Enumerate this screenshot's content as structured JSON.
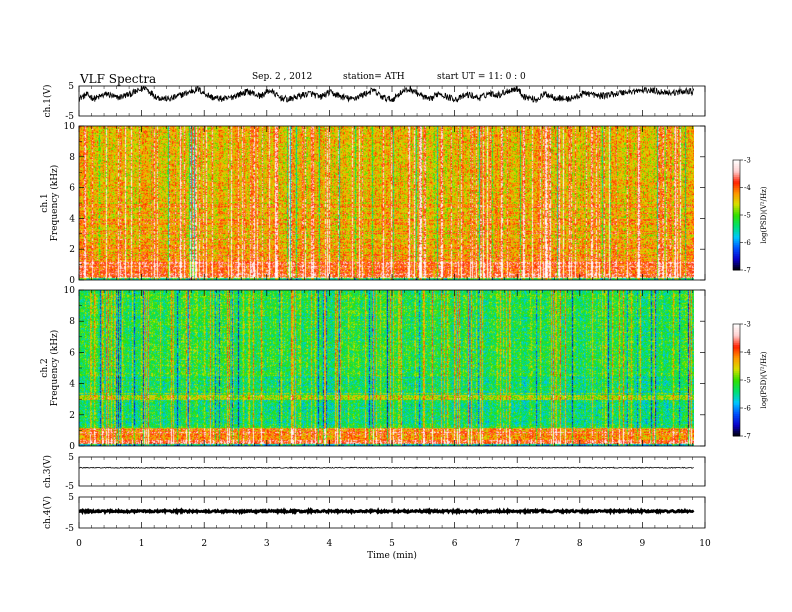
{
  "header": {
    "title": "VLF  Spectra",
    "date": "Sep. 2  , 2012",
    "station": "station= ATH",
    "start": "start  UT  =    11: 0  : 0"
  },
  "chart_data": [
    {
      "id": "ch1-waveform",
      "type": "line",
      "ylabel": "ch.1(V)",
      "ylim": [
        -5,
        5
      ],
      "yticks": [
        "5",
        "-5"
      ],
      "xlim": [
        0,
        10
      ],
      "trend": [
        [
          0.0,
          0.9
        ],
        [
          0.12,
          2.1
        ],
        [
          0.25,
          0.8
        ],
        [
          0.45,
          2.4
        ],
        [
          0.6,
          1.0
        ],
        [
          0.8,
          2.2
        ],
        [
          0.95,
          3.4
        ],
        [
          1.05,
          4.6
        ],
        [
          1.15,
          2.8
        ],
        [
          1.25,
          1.2
        ],
        [
          1.45,
          0.6
        ],
        [
          1.6,
          1.8
        ],
        [
          1.75,
          2.9
        ],
        [
          1.9,
          4.0
        ],
        [
          2.0,
          2.6
        ],
        [
          2.15,
          1.0
        ],
        [
          2.35,
          0.6
        ],
        [
          2.5,
          1.8
        ],
        [
          2.7,
          3.2
        ],
        [
          2.9,
          1.6
        ],
        [
          3.05,
          3.6
        ],
        [
          3.2,
          1.2
        ],
        [
          3.35,
          0.4
        ],
        [
          3.5,
          1.6
        ],
        [
          3.7,
          2.6
        ],
        [
          3.85,
          1.2
        ],
        [
          4.0,
          2.9
        ],
        [
          4.2,
          1.4
        ],
        [
          4.35,
          0.6
        ],
        [
          4.55,
          2.2
        ],
        [
          4.7,
          3.6
        ],
        [
          4.85,
          1.2
        ],
        [
          5.0,
          0.4
        ],
        [
          5.15,
          3.0
        ],
        [
          5.3,
          4.0
        ],
        [
          5.45,
          2.0
        ],
        [
          5.6,
          0.3
        ],
        [
          5.75,
          2.8
        ],
        [
          5.9,
          1.2
        ],
        [
          6.05,
          0.6
        ],
        [
          6.2,
          2.2
        ],
        [
          6.4,
          1.0
        ],
        [
          6.55,
          2.6
        ],
        [
          6.7,
          2.0
        ],
        [
          6.85,
          3.4
        ],
        [
          7.0,
          4.2
        ],
        [
          7.1,
          1.6
        ],
        [
          7.3,
          0.4
        ],
        [
          7.45,
          2.4
        ],
        [
          7.6,
          1.2
        ],
        [
          7.8,
          0.6
        ],
        [
          7.95,
          1.4
        ],
        [
          8.1,
          2.8
        ],
        [
          8.3,
          1.6
        ],
        [
          8.5,
          2.2
        ],
        [
          8.7,
          2.9
        ],
        [
          8.9,
          3.3
        ],
        [
          9.1,
          3.6
        ],
        [
          9.3,
          3.1
        ],
        [
          9.5,
          2.7
        ],
        [
          9.7,
          3.4
        ],
        [
          9.82,
          3.0
        ]
      ],
      "color": "#000000"
    },
    {
      "id": "ch1-spectrogram",
      "type": "heatmap",
      "ylabel": "ch.1\nFrequency  (kHz)",
      "ylim": [
        0,
        10
      ],
      "yticks": [
        "0",
        "2",
        "4",
        "6",
        "8",
        "10"
      ],
      "xlim": [
        0,
        10
      ],
      "data_extent_x": [
        0,
        9.82
      ],
      "colorbar": {
        "label": "log(PSD)(V²/Hz)",
        "range": [
          -7,
          -3
        ],
        "ticks": [
          "-7",
          "-6",
          "-5",
          "-4",
          "-3"
        ],
        "colors": [
          "#000000",
          "#0a00c8",
          "#0050ff",
          "#00c8ff",
          "#00e070",
          "#30e000",
          "#d8e000",
          "#ff9800",
          "#ff2000",
          "#ffd0d0",
          "#ffffff"
        ]
      },
      "band_kHz_dominant": [
        1.0,
        5.2
      ],
      "base_level": -4.4,
      "low_band_level": -3.9
    },
    {
      "id": "ch2-spectrogram",
      "type": "heatmap",
      "ylabel": "ch.2\nFrequency  (kHz)",
      "ylim": [
        0,
        10
      ],
      "yticks": [
        "0",
        "2",
        "4",
        "6",
        "8",
        "10"
      ],
      "xlim": [
        0,
        10
      ],
      "data_extent_x": [
        0,
        9.82
      ],
      "colorbar": {
        "label": "log(PSD)(V²/Hz)",
        "range": [
          -7,
          -3
        ],
        "ticks": [
          "-7",
          "-6",
          "-5",
          "-4",
          "-3"
        ],
        "colors": [
          "#000000",
          "#0a00c8",
          "#0050ff",
          "#00c8ff",
          "#00e070",
          "#30e000",
          "#d8e000",
          "#ff9800",
          "#ff2000",
          "#ffd0d0",
          "#ffffff"
        ]
      },
      "base_level": -5.2,
      "low_band_level": -4.2
    },
    {
      "id": "ch3-waveform",
      "type": "line",
      "ylabel": "ch.3(V)",
      "ylim": [
        -5,
        5
      ],
      "yticks": [
        "5",
        "-5"
      ],
      "xlim": [
        0,
        10
      ],
      "mean": 1.3,
      "noise": 0.35,
      "color": "#000000"
    },
    {
      "id": "ch4-waveform",
      "type": "line",
      "ylabel": "ch.4(V)",
      "ylim": [
        -5,
        5
      ],
      "yticks": [
        "5",
        "-5"
      ],
      "xlim": [
        0,
        10
      ],
      "mean": 0.4,
      "noise": 0.6,
      "color": "#000000"
    }
  ],
  "x_axis": {
    "label": "Time  (min)",
    "range": [
      0,
      10
    ],
    "ticks": [
      "0",
      "1",
      "2",
      "3",
      "4",
      "5",
      "6",
      "7",
      "8",
      "9",
      "10"
    ]
  }
}
